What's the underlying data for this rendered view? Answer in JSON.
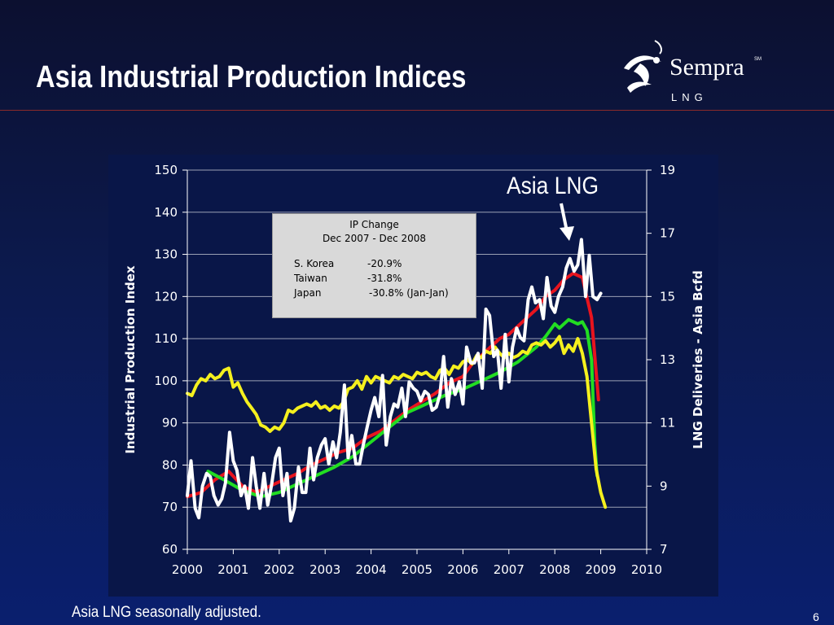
{
  "slide": {
    "title": "Asia Industrial Production Indices",
    "footnote": "Asia LNG seasonally adjusted.",
    "page_number": "6"
  },
  "logo": {
    "icon": "sempra-swirl-logo-icon",
    "name": "Sempra",
    "mark": "SM",
    "subtitle": "LNG"
  },
  "ip_box": {
    "header_line1": "IP Change",
    "header_line2": "Dec 2007 - Dec 2008",
    "rows": [
      {
        "country": "S. Korea",
        "change": "-20.9%"
      },
      {
        "country": "Taiwan",
        "change": "-31.8%"
      },
      {
        "country": "Japan",
        "change": "-30.8% (Jan-Jan)"
      }
    ]
  },
  "callout": {
    "label": "Asia LNG",
    "arrow": "down-arrow-icon"
  },
  "colors": {
    "red_series": "#e8141e",
    "green_series": "#22dd22",
    "yellow_series": "#f5f01e",
    "white_series": "#ffffff",
    "axis": "#ffffff",
    "grid": "#9aa0b4"
  },
  "chart_data": {
    "type": "line",
    "title": "",
    "xlabel": "",
    "ylabel": "Industrial Production Index",
    "y2label": "LNG Deliveries - Asia Bcfd",
    "xlim": [
      2000,
      2010
    ],
    "ylim": [
      60,
      150
    ],
    "y2lim": [
      7,
      19
    ],
    "x_ticks": [
      "2000",
      "2001",
      "2002",
      "2003",
      "2004",
      "2005",
      "2006",
      "2007",
      "2008",
      "2009",
      "2010"
    ],
    "y_ticks": [
      "60",
      "70",
      "80",
      "90",
      "100",
      "110",
      "120",
      "130",
      "140",
      "150"
    ],
    "y2_ticks": [
      "7",
      "9",
      "11",
      "13",
      "15",
      "17",
      "19"
    ],
    "grid": true,
    "series": [
      {
        "axis": "left",
        "color": "#e8141e",
        "x": [
          2000.0,
          2000.3,
          2000.6,
          2000.9,
          2001.2,
          2001.5,
          2001.8,
          2002.1,
          2002.4,
          2002.7,
          2003.0,
          2003.3,
          2003.6,
          2003.9,
          2004.2,
          2004.5,
          2004.8,
          2005.1,
          2005.4,
          2005.7,
          2006.0,
          2006.2,
          2006.4,
          2006.6,
          2006.8,
          2007.0,
          2007.2,
          2007.4,
          2007.6,
          2007.8,
          2008.0,
          2008.2,
          2008.4,
          2008.6,
          2008.8,
          2008.95
        ],
        "values": [
          72.5,
          73.5,
          76.5,
          78.5,
          75.0,
          73.5,
          75.0,
          76.5,
          78.0,
          80.0,
          81.5,
          83.0,
          84.0,
          86.5,
          88.0,
          90.5,
          93.0,
          95.0,
          97.0,
          99.5,
          101.0,
          104.0,
          106.0,
          108.0,
          110.0,
          111.0,
          113.0,
          115.0,
          117.0,
          120.0,
          121.5,
          124.0,
          125.5,
          124.5,
          115.0,
          95.5
        ]
      },
      {
        "axis": "left",
        "color": "#22dd22",
        "x": [
          2000.45,
          2000.8,
          2001.2,
          2001.6,
          2002.0,
          2002.4,
          2002.8,
          2003.2,
          2003.6,
          2004.0,
          2004.4,
          2004.8,
          2005.2,
          2005.6,
          2006.0,
          2006.4,
          2006.8,
          2007.2,
          2007.6,
          2007.8,
          2008.0,
          2008.1,
          2008.3,
          2008.5,
          2008.6,
          2008.7,
          2008.8,
          2008.87,
          2008.92
        ],
        "values": [
          78.5,
          76.5,
          74.0,
          72.5,
          73.5,
          75.5,
          77.5,
          79.5,
          82.0,
          85.5,
          89.0,
          92.5,
          94.5,
          96.5,
          98.0,
          100.0,
          102.0,
          104.5,
          108.0,
          110.5,
          113.5,
          112.5,
          114.5,
          113.5,
          114.0,
          112.0,
          105.0,
          85.0,
          77.5
        ]
      },
      {
        "axis": "left",
        "color": "#f5f01e",
        "x": [
          2000.0,
          2000.1,
          2000.2,
          2000.3,
          2000.4,
          2000.5,
          2000.6,
          2000.7,
          2000.8,
          2000.9,
          2001.0,
          2001.1,
          2001.2,
          2001.3,
          2001.4,
          2001.5,
          2001.6,
          2001.7,
          2001.8,
          2001.9,
          2002.0,
          2002.1,
          2002.2,
          2002.3,
          2002.4,
          2002.5,
          2002.6,
          2002.7,
          2002.8,
          2002.9,
          2003.0,
          2003.1,
          2003.2,
          2003.3,
          2003.4,
          2003.5,
          2003.6,
          2003.7,
          2003.8,
          2003.9,
          2004.0,
          2004.1,
          2004.2,
          2004.3,
          2004.4,
          2004.5,
          2004.6,
          2004.7,
          2004.8,
          2004.9,
          2005.0,
          2005.1,
          2005.2,
          2005.3,
          2005.4,
          2005.5,
          2005.6,
          2005.7,
          2005.8,
          2005.9,
          2006.0,
          2006.1,
          2006.2,
          2006.3,
          2006.4,
          2006.5,
          2006.6,
          2006.7,
          2006.8,
          2006.9,
          2007.0,
          2007.1,
          2007.2,
          2007.3,
          2007.4,
          2007.5,
          2007.6,
          2007.7,
          2007.8,
          2007.9,
          2008.0,
          2008.1,
          2008.2,
          2008.3,
          2008.4,
          2008.5,
          2008.6,
          2008.7,
          2008.8,
          2008.9,
          2009.0,
          2009.1
        ],
        "values": [
          97.0,
          96.5,
          99.0,
          100.5,
          100.0,
          101.5,
          100.5,
          101.0,
          102.5,
          103.0,
          98.5,
          99.5,
          97.0,
          95.0,
          93.5,
          92.0,
          89.5,
          89.0,
          88.0,
          89.0,
          88.5,
          90.0,
          93.0,
          92.5,
          93.5,
          94.0,
          94.5,
          94.0,
          95.0,
          93.5,
          94.0,
          93.0,
          94.0,
          93.5,
          95.0,
          98.0,
          98.5,
          100.0,
          98.0,
          101.0,
          99.5,
          101.0,
          100.5,
          100.0,
          99.5,
          101.0,
          100.5,
          101.5,
          101.0,
          100.5,
          102.0,
          101.5,
          102.0,
          101.0,
          100.5,
          102.5,
          103.0,
          101.5,
          103.5,
          103.0,
          104.5,
          105.0,
          104.0,
          106.0,
          105.5,
          107.0,
          106.5,
          108.0,
          106.5,
          105.5,
          106.5,
          105.5,
          106.0,
          107.0,
          106.5,
          108.5,
          109.0,
          108.5,
          109.5,
          108.0,
          109.0,
          110.5,
          106.5,
          108.5,
          107.0,
          110.0,
          106.5,
          101.0,
          90.0,
          79.0,
          73.5,
          70.0
        ]
      },
      {
        "axis": "right",
        "color": "#ffffff",
        "x": [
          2000.0,
          2000.08,
          2000.17,
          2000.25,
          2000.33,
          2000.42,
          2000.5,
          2000.58,
          2000.67,
          2000.75,
          2000.83,
          2000.92,
          2001.0,
          2001.08,
          2001.17,
          2001.25,
          2001.33,
          2001.42,
          2001.5,
          2001.58,
          2001.67,
          2001.75,
          2001.83,
          2001.92,
          2002.0,
          2002.08,
          2002.17,
          2002.25,
          2002.33,
          2002.42,
          2002.5,
          2002.58,
          2002.67,
          2002.75,
          2002.83,
          2002.92,
          2003.0,
          2003.08,
          2003.17,
          2003.25,
          2003.33,
          2003.42,
          2003.5,
          2003.58,
          2003.67,
          2003.75,
          2003.83,
          2003.92,
          2004.0,
          2004.08,
          2004.17,
          2004.25,
          2004.33,
          2004.42,
          2004.5,
          2004.58,
          2004.67,
          2004.75,
          2004.83,
          2004.92,
          2005.0,
          2005.08,
          2005.17,
          2005.25,
          2005.33,
          2005.42,
          2005.5,
          2005.58,
          2005.67,
          2005.75,
          2005.83,
          2005.92,
          2006.0,
          2006.08,
          2006.17,
          2006.25,
          2006.33,
          2006.42,
          2006.5,
          2006.58,
          2006.67,
          2006.75,
          2006.83,
          2006.92,
          2007.0,
          2007.08,
          2007.17,
          2007.25,
          2007.33,
          2007.42,
          2007.5,
          2007.58,
          2007.67,
          2007.75,
          2007.83,
          2007.92,
          2008.0,
          2008.08,
          2008.17,
          2008.25,
          2008.33,
          2008.42,
          2008.5,
          2008.58,
          2008.67,
          2008.75,
          2008.83,
          2008.92,
          2009.0
        ],
        "values": [
          8.7,
          9.8,
          8.3,
          8.0,
          9.0,
          9.4,
          9.3,
          8.7,
          8.4,
          8.6,
          9.1,
          10.7,
          9.8,
          9.5,
          8.7,
          9.0,
          8.3,
          9.9,
          9.0,
          8.3,
          9.4,
          8.4,
          9.0,
          9.9,
          10.2,
          8.7,
          9.4,
          7.9,
          8.3,
          9.6,
          8.8,
          8.8,
          10.2,
          9.2,
          9.9,
          10.3,
          10.5,
          9.7,
          10.4,
          9.9,
          10.7,
          12.2,
          9.9,
          10.6,
          9.7,
          9.7,
          10.3,
          10.9,
          11.4,
          11.8,
          11.2,
          12.5,
          10.3,
          11.2,
          11.6,
          11.5,
          12.1,
          11.2,
          12.3,
          12.1,
          12.0,
          11.7,
          12.0,
          11.9,
          11.4,
          11.5,
          11.9,
          13.1,
          11.5,
          12.4,
          11.9,
          12.3,
          11.6,
          13.4,
          12.9,
          12.9,
          13.2,
          12.1,
          14.6,
          14.4,
          13.1,
          13.3,
          12.1,
          13.8,
          12.3,
          13.4,
          14.0,
          13.7,
          13.6,
          14.9,
          15.3,
          14.8,
          14.9,
          14.3,
          15.6,
          14.7,
          14.5,
          15.0,
          15.3,
          15.9,
          16.2,
          15.8,
          16.0,
          16.8,
          15.0,
          16.3,
          15.0,
          14.9,
          15.1
        ]
      }
    ]
  }
}
